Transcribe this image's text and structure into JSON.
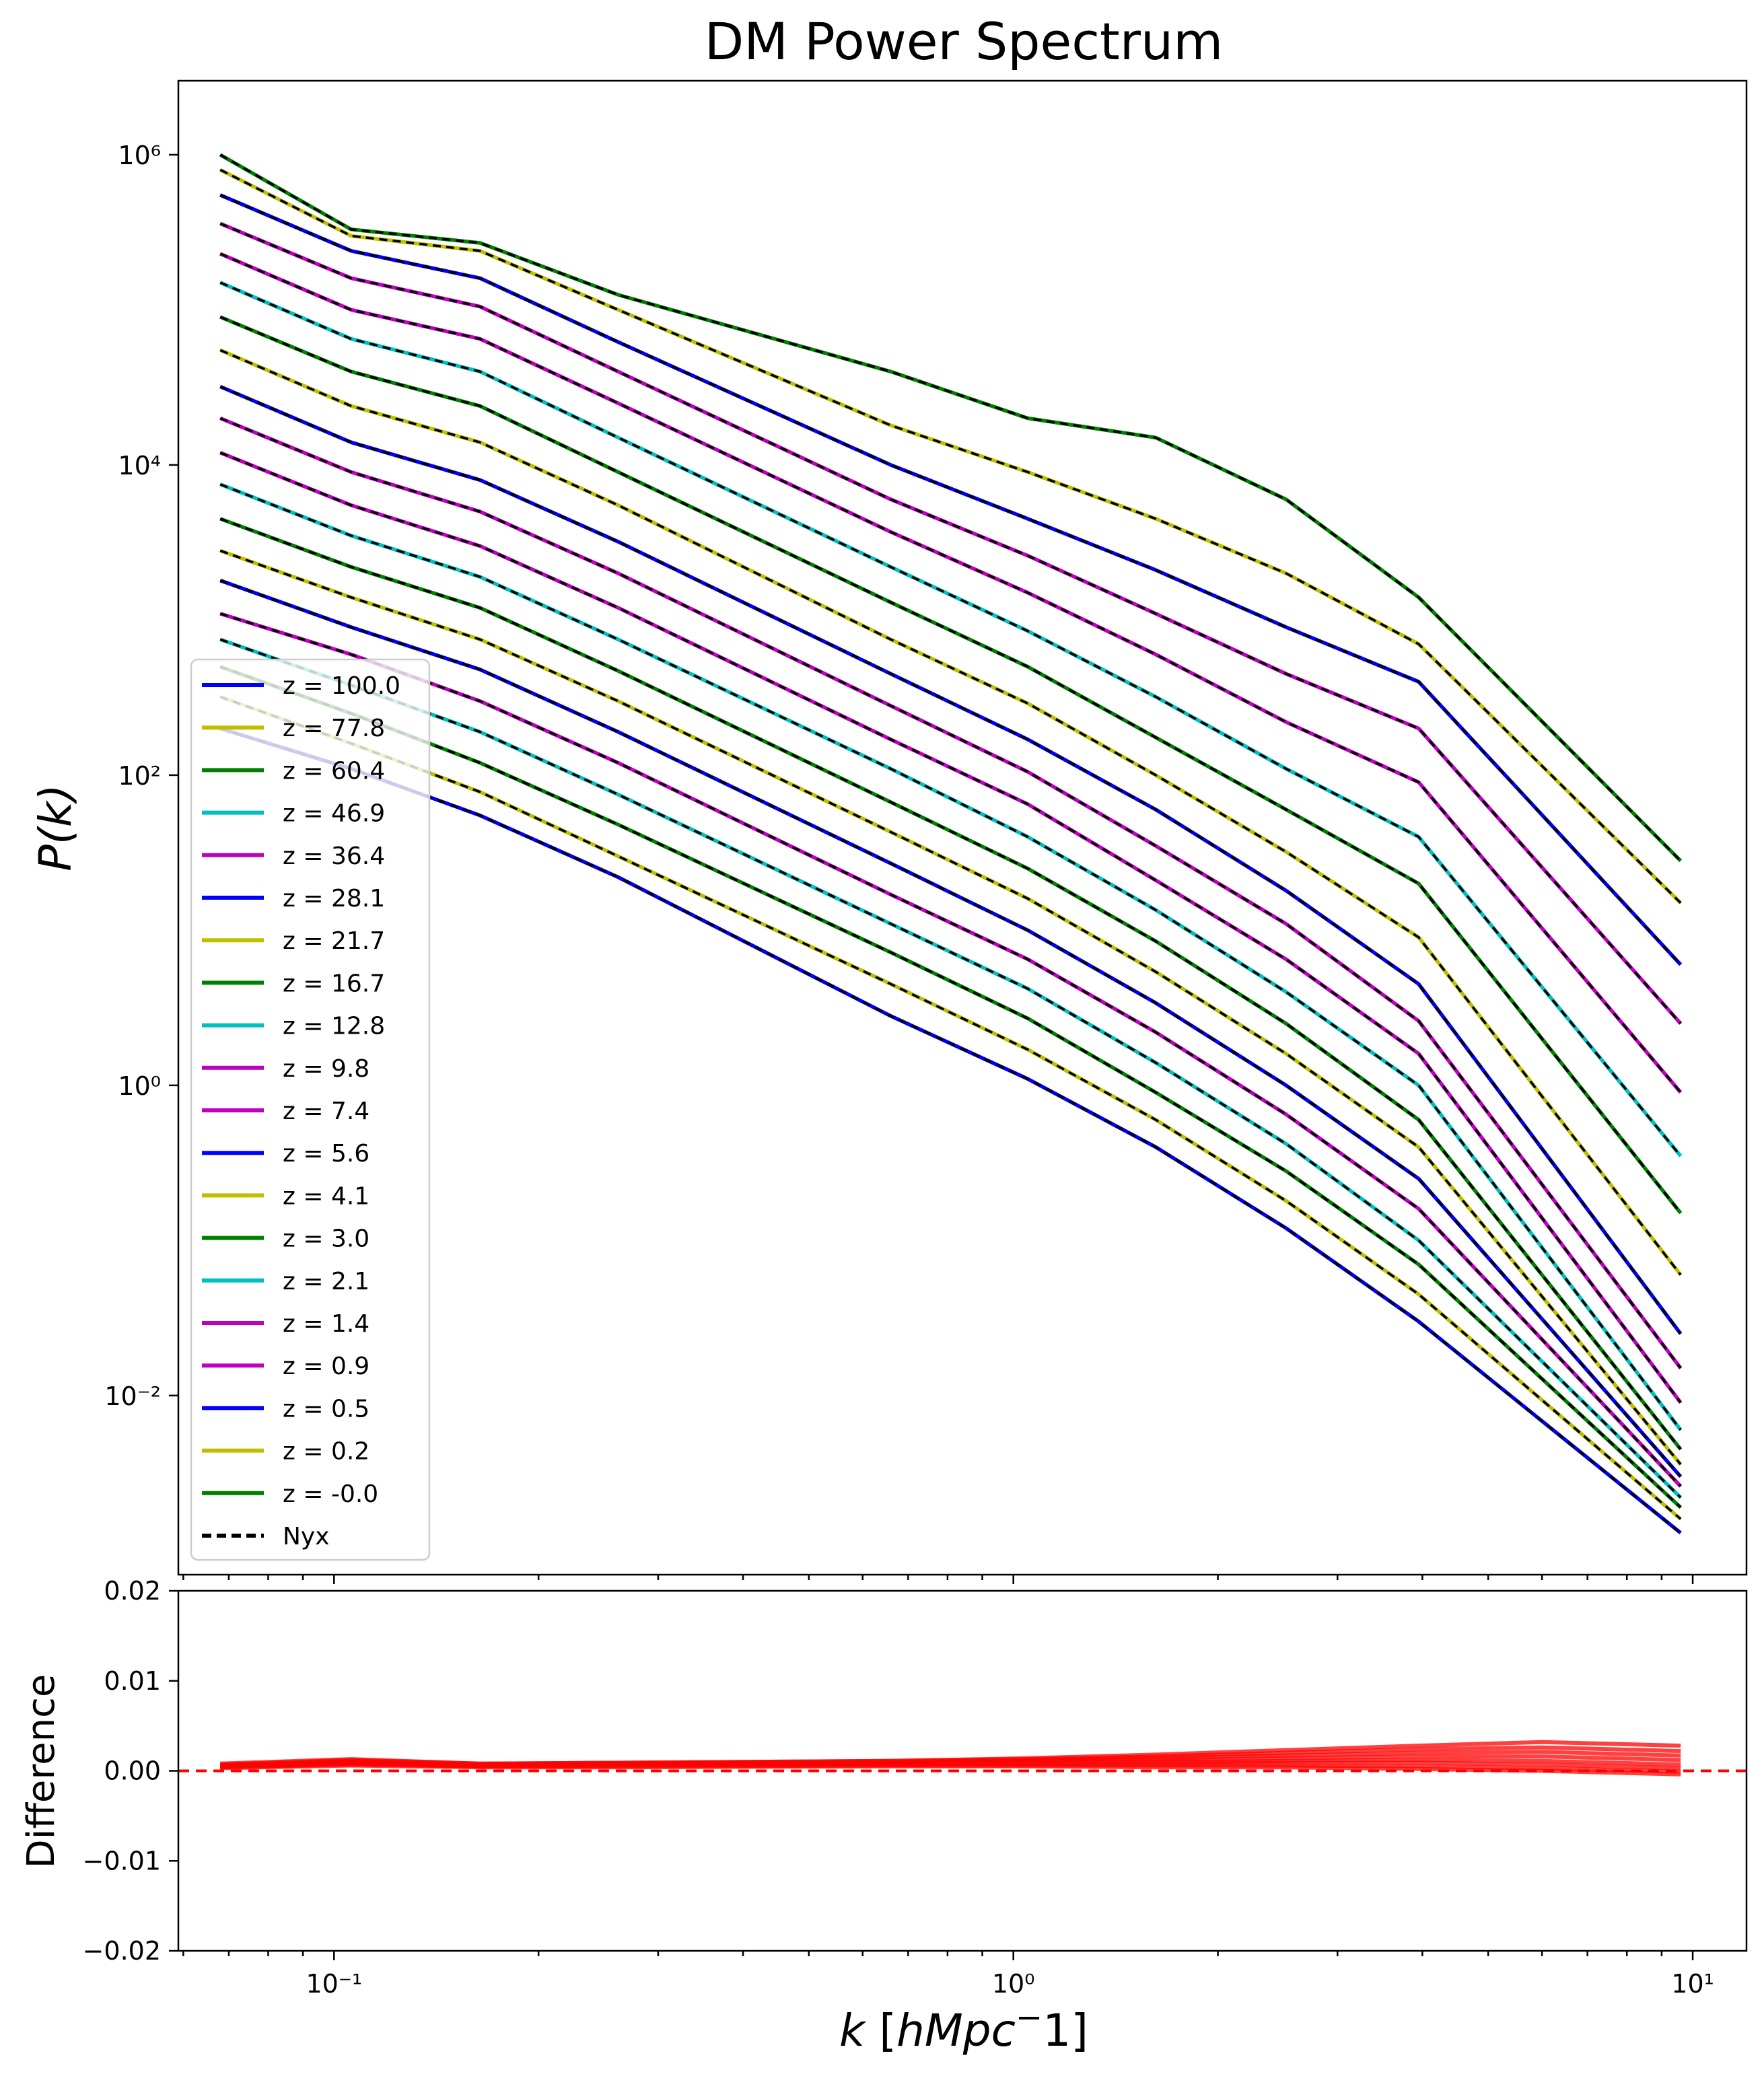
{
  "chart_data": [
    {
      "type": "line",
      "title": "DM Power Spectrum",
      "xlabel": "",
      "ylabel": "P(k)",
      "xscale": "log",
      "yscale": "log",
      "xlim": [
        0.059,
        12.0
      ],
      "ylim": [
        0.0007,
        3000000
      ],
      "x_ticks": [
        "10⁻¹",
        "10⁰",
        "10¹"
      ],
      "y_ticks": [
        "10⁻²",
        "10⁰",
        "10²",
        "10⁴",
        "10⁶"
      ],
      "legend_location": "lower-left",
      "grid": false,
      "base_k": [
        0.068,
        0.106,
        0.164,
        0.262,
        0.66,
        1.05,
        1.62,
        2.52,
        3.95,
        9.6
      ],
      "reference_spectrum": {
        "description_of_z0_curve": "top curve",
        "k": [
          0.068,
          0.106,
          0.164,
          0.262,
          0.66,
          1.05,
          1.62,
          2.52,
          3.95,
          9.6
        ],
        "values": [
          1000000,
          330000,
          270000,
          125000,
          40000,
          20000,
          15000,
          6000,
          1400,
          28
        ]
      },
      "series": [
        {
          "name": "z = 100.0",
          "color": "#0000ff",
          "values": [
            200,
            110,
            55,
            22,
            2.8,
            1.1,
            0.4,
            0.12,
            0.03,
            0.0013
          ]
        },
        {
          "name": "z = 77.8",
          "color": "#bfbf00",
          "values": [
            320,
            160,
            78,
            30,
            4.5,
            1.7,
            0.6,
            0.18,
            0.045,
            0.0016
          ]
        },
        {
          "name": "z = 60.4",
          "color": "#008000",
          "values": [
            500,
            250,
            120,
            48,
            7.2,
            2.7,
            0.9,
            0.28,
            0.07,
            0.0019
          ]
        },
        {
          "name": "z = 46.9",
          "color": "#00bfbf",
          "values": [
            750,
            380,
            190,
            75,
            11,
            4.2,
            1.4,
            0.42,
            0.1,
            0.0022
          ]
        },
        {
          "name": "z = 36.4",
          "color": "#bf00bf",
          "values": [
            1100,
            600,
            300,
            120,
            17,
            6.5,
            2.2,
            0.65,
            0.16,
            0.0026
          ]
        },
        {
          "name": "z = 28.1",
          "color": "#0000ff",
          "values": [
            1800,
            900,
            480,
            190,
            27,
            10,
            3.4,
            1.0,
            0.25,
            0.003
          ]
        },
        {
          "name": "z = 21.7",
          "color": "#bfbf00",
          "values": [
            2800,
            1400,
            750,
            300,
            43,
            16,
            5.4,
            1.6,
            0.4,
            0.0036
          ]
        },
        {
          "name": "z = 16.7",
          "color": "#008000",
          "values": [
            4500,
            2200,
            1200,
            470,
            67,
            25,
            8.5,
            2.5,
            0.6,
            0.0045
          ]
        },
        {
          "name": "z = 12.8",
          "color": "#00bfbf",
          "values": [
            7500,
            3500,
            1900,
            750,
            110,
            40,
            13.5,
            4.0,
            1.0,
            0.006
          ]
        },
        {
          "name": "z = 9.8",
          "color": "#bf00bf",
          "values": [
            12000,
            5500,
            3000,
            1200,
            170,
            65,
            21,
            6.5,
            1.6,
            0.009
          ]
        },
        {
          "name": "z = 7.4",
          "color": "#bf00bf",
          "values": [
            20000,
            9000,
            5000,
            2000,
            280,
            105,
            35,
            11,
            2.6,
            0.015
          ]
        },
        {
          "name": "z = 5.6",
          "color": "#0000ff",
          "values": [
            32000,
            14000,
            8000,
            3200,
            450,
            170,
            60,
            18,
            4.5,
            0.025
          ]
        },
        {
          "name": "z = 4.1",
          "color": "#bfbf00",
          "values": [
            55000,
            24000,
            14000,
            5500,
            750,
            290,
            100,
            32,
            9,
            0.06
          ]
        },
        {
          "name": "z = 3.0",
          "color": "#008000",
          "values": [
            90000,
            40000,
            24000,
            9000,
            1300,
            500,
            175,
            60,
            20,
            0.15
          ]
        },
        {
          "name": "z = 2.1",
          "color": "#00bfbf",
          "values": [
            150000,
            65000,
            40000,
            15000,
            2200,
            850,
            320,
            110,
            40,
            0.35
          ]
        },
        {
          "name": "z = 1.4",
          "color": "#bf00bf",
          "values": [
            230000,
            100000,
            65000,
            25000,
            3700,
            1500,
            600,
            220,
            90,
            0.9
          ]
        },
        {
          "name": "z = 0.9",
          "color": "#bf00bf",
          "values": [
            360000,
            160000,
            105000,
            40000,
            6000,
            2600,
            1100,
            450,
            200,
            2.5
          ]
        },
        {
          "name": "z = 0.5",
          "color": "#0000ff",
          "values": [
            550000,
            240000,
            160000,
            62000,
            10000,
            4500,
            2100,
            900,
            400,
            6
          ]
        },
        {
          "name": "z = 0.2",
          "color": "#bfbf00",
          "values": [
            800000,
            300000,
            240000,
            100000,
            18000,
            9000,
            4500,
            2000,
            700,
            15
          ]
        },
        {
          "name": "z = -0.0",
          "color": "#008000",
          "values": [
            1000000,
            330000,
            270000,
            125000,
            40000,
            20000,
            15000,
            6000,
            1400,
            28
          ]
        }
      ],
      "reference_series": {
        "name": "Nyx",
        "color": "#000000",
        "style": "dashed"
      }
    },
    {
      "type": "line",
      "title": "",
      "xlabel": "k [hMpc^-1]",
      "ylabel": "Difference",
      "xscale": "log",
      "xlim": [
        0.059,
        12.0
      ],
      "ylim": [
        -0.02,
        0.02
      ],
      "x_ticks": [
        "10⁻¹",
        "10⁰",
        "10¹"
      ],
      "y_ticks": [
        "−0.02",
        "−0.01",
        "0.00",
        "0.01",
        "0.02"
      ],
      "line_color": "#ff0000",
      "zero_line": {
        "y": 0,
        "color": "#ff0000",
        "style": "dashed"
      },
      "k": [
        0.068,
        0.106,
        0.164,
        0.262,
        0.66,
        1.05,
        1.62,
        2.52,
        3.95,
        6.0,
        9.6
      ],
      "series": [
        {
          "values": [
            0.0008,
            0.0013,
            0.0008,
            0.0009,
            0.0011,
            0.0014,
            0.0018,
            0.0023,
            0.0028,
            0.0032,
            0.0028
          ]
        },
        {
          "values": [
            0.0007,
            0.0012,
            0.0008,
            0.0009,
            0.0011,
            0.0013,
            0.0016,
            0.002,
            0.0024,
            0.0026,
            0.0022
          ]
        },
        {
          "values": [
            0.0006,
            0.0011,
            0.0007,
            0.0008,
            0.001,
            0.0012,
            0.0014,
            0.0017,
            0.002,
            0.0021,
            0.0017
          ]
        },
        {
          "values": [
            0.0006,
            0.001,
            0.0007,
            0.0008,
            0.0009,
            0.0011,
            0.0012,
            0.0014,
            0.0016,
            0.0016,
            0.0012
          ]
        },
        {
          "values": [
            0.0005,
            0.0009,
            0.0006,
            0.0007,
            0.0008,
            0.0009,
            0.001,
            0.0011,
            0.0012,
            0.0011,
            0.0007
          ]
        },
        {
          "values": [
            0.0004,
            0.0008,
            0.0005,
            0.0006,
            0.0007,
            0.0008,
            0.0008,
            0.0009,
            0.0009,
            0.0007,
            0.0003
          ]
        },
        {
          "values": [
            0.0004,
            0.0007,
            0.0005,
            0.0005,
            0.0006,
            0.0006,
            0.0006,
            0.0006,
            0.0005,
            0.0003,
            -0.0001
          ]
        },
        {
          "values": [
            0.0003,
            0.0006,
            0.0004,
            0.0004,
            0.0005,
            0.0005,
            0.0004,
            0.0004,
            0.0002,
            0.0,
            -0.0004
          ]
        }
      ]
    }
  ]
}
